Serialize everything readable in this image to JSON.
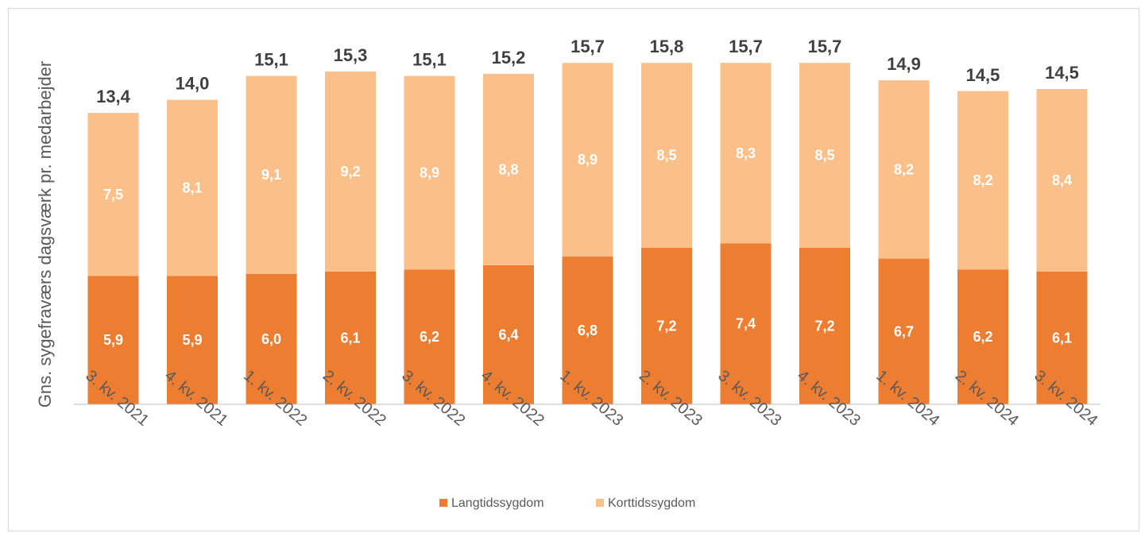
{
  "chart_data": {
    "type": "bar",
    "stacked": true,
    "ylabel": "Gns. sygefraværs dagsværk pr. medarbejder",
    "xlabel": "",
    "title": "",
    "ylim": [
      0,
      16.4
    ],
    "grid": false,
    "legend_position": "bottom-center",
    "categories": [
      "3. kv. 2021",
      "4. kv. 2021",
      "1. kv. 2022",
      "2. kv. 2022",
      "3. kv. 2022",
      "4. kv. 2022",
      "1. kv. 2023",
      "2. kv. 2023",
      "3. kv. 2023",
      "4. kv. 2023",
      "1. kv. 2024",
      "2. kv. 2024",
      "3. kv. 2024"
    ],
    "series": [
      {
        "name": "Langtidssygdom",
        "color": "#ed7d31",
        "values": [
          5.9,
          5.9,
          6.0,
          6.1,
          6.2,
          6.4,
          6.8,
          7.2,
          7.4,
          7.2,
          6.7,
          6.2,
          6.1
        ],
        "labels": [
          "5,9",
          "5,9",
          "6,0",
          "6,1",
          "6,2",
          "6,4",
          "6,8",
          "7,2",
          "7,4",
          "7,2",
          "6,7",
          "6,2",
          "6,1"
        ]
      },
      {
        "name": "Korttidssygdom",
        "color": "#fbc08a",
        "values": [
          7.5,
          8.1,
          9.1,
          9.2,
          8.9,
          8.8,
          8.9,
          8.5,
          8.3,
          8.5,
          8.2,
          8.2,
          8.4
        ],
        "labels": [
          "7,5",
          "8,1",
          "9,1",
          "9,2",
          "8,9",
          "8,8",
          "8,9",
          "8,5",
          "8,3",
          "8,5",
          "8,2",
          "8,2",
          "8,4"
        ]
      }
    ],
    "totals": [
      13.4,
      14.0,
      15.1,
      15.3,
      15.1,
      15.2,
      15.7,
      15.8,
      15.7,
      15.7,
      14.9,
      14.5,
      14.5
    ],
    "total_labels": [
      "13,4",
      "14,0",
      "15,1",
      "15,3",
      "15,1",
      "15,2",
      "15,7",
      "15,8",
      "15,7",
      "15,7",
      "14,9",
      "14,5",
      "14,5"
    ]
  }
}
